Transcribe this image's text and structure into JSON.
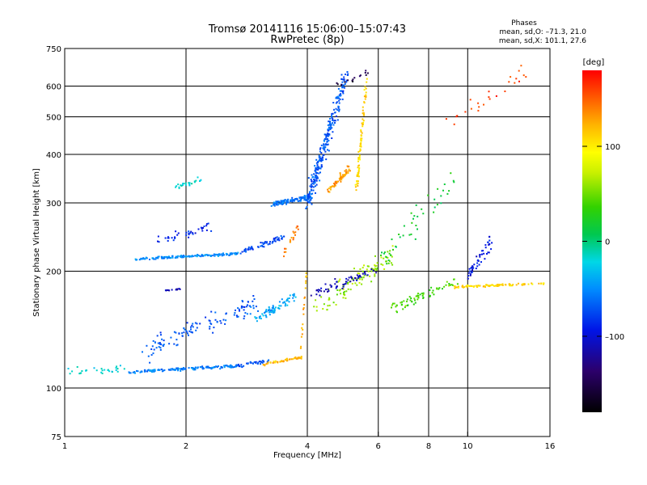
{
  "chart_data": {
    "type": "scatter",
    "title": "Tromsø 20141116 15:06:00–15:07:43",
    "subtitle": "RwPretec (8p)",
    "xlabel": "Frequency [MHz]",
    "ylabel": "Stationary phase Virtual Height [km]",
    "x_scale": "log",
    "y_scale": "log",
    "xlim": [
      1,
      16
    ],
    "ylim": [
      75,
      750
    ],
    "x_ticks": [
      "1",
      "2",
      "4",
      "6",
      "8",
      "10",
      "16"
    ],
    "x_tick_values": [
      1,
      2,
      4,
      6,
      8,
      10,
      16
    ],
    "y_ticks": [
      "75",
      "100",
      "200",
      "300",
      "400",
      "500",
      "600",
      "750"
    ],
    "y_tick_values": [
      75,
      100,
      200,
      300,
      400,
      500,
      600,
      750
    ],
    "grid": true,
    "colorbar": {
      "label": "[deg]",
      "range": [
        -180,
        180
      ],
      "ticks": [
        "100",
        "0",
        "–100"
      ],
      "tick_values": [
        100,
        0,
        -100
      ]
    },
    "stats": {
      "title": "Phases",
      "line_o": "mean, sd,O: –71.3, 21.0",
      "line_x": "mean, sd,X: 101.1, 27.6"
    },
    "traces": [
      {
        "name": "",
        "f_start": 1.0,
        "f_end": 1.45,
        "h_start": 110,
        "h_end": 112,
        "phase": -20,
        "spread_f": 0.02,
        "spread_h": 0.04,
        "n": 30
      },
      {
        "name": "",
        "f_start": 1.45,
        "f_end": 2.7,
        "h_start": 110,
        "h_end": 114,
        "phase": -55,
        "spread_f": 0.01,
        "spread_h": 0.012,
        "n": 150
      },
      {
        "name": "",
        "f_start": 2.7,
        "f_end": 3.2,
        "h_start": 114,
        "h_end": 118,
        "phase": -75,
        "spread_f": 0.01,
        "spread_h": 0.015,
        "n": 35
      },
      {
        "name": "",
        "f_start": 3.1,
        "f_end": 3.9,
        "h_start": 115,
        "h_end": 120,
        "phase": 120,
        "spread_f": 0.008,
        "spread_h": 0.015,
        "n": 50
      },
      {
        "name": "",
        "f_start": 3.85,
        "f_end": 3.98,
        "h_start": 125,
        "h_end": 200,
        "phase": 125,
        "spread_f": 0.004,
        "spread_h": 0.02,
        "n": 20
      },
      {
        "name": "",
        "f_start": 1.5,
        "f_end": 2.7,
        "h_start": 215,
        "h_end": 222,
        "phase": -50,
        "spread_f": 0.01,
        "spread_h": 0.01,
        "n": 150
      },
      {
        "name": "",
        "f_start": 2.7,
        "f_end": 3.5,
        "h_start": 222,
        "h_end": 245,
        "phase": -75,
        "spread_f": 0.01,
        "spread_h": 0.02,
        "n": 60
      },
      {
        "name": "",
        "f_start": 3.3,
        "f_end": 4.1,
        "h_start": 298,
        "h_end": 312,
        "phase": -60,
        "spread_f": 0.02,
        "spread_h": 0.02,
        "n": 120
      },
      {
        "name": "",
        "f_start": 4.0,
        "f_end": 5.0,
        "h_start": 300,
        "h_end": 640,
        "phase": -70,
        "spread_f": 0.03,
        "spread_h": 0.08,
        "n": 260
      },
      {
        "name": "",
        "f_start": 4.5,
        "f_end": 5.1,
        "h_start": 320,
        "h_end": 370,
        "phase": 130,
        "spread_f": 0.015,
        "spread_h": 0.03,
        "n": 60
      },
      {
        "name": "",
        "f_start": 5.3,
        "f_end": 5.6,
        "h_start": 330,
        "h_end": 600,
        "phase": 110,
        "spread_f": 0.01,
        "spread_h": 0.07,
        "n": 90
      },
      {
        "name": "",
        "f_start": 1.7,
        "f_end": 2.3,
        "h_start": 240,
        "h_end": 260,
        "phase": -90,
        "spread_f": 0.02,
        "spread_h": 0.04,
        "n": 40
      },
      {
        "name": "",
        "f_start": 1.9,
        "f_end": 2.2,
        "h_start": 330,
        "h_end": 345,
        "phase": -20,
        "spread_f": 0.03,
        "spread_h": 0.02,
        "n": 25
      },
      {
        "name": "",
        "f_start": 3.4,
        "f_end": 3.8,
        "h_start": 212,
        "h_end": 260,
        "phase": 140,
        "spread_f": 0.015,
        "spread_h": 0.03,
        "n": 20
      },
      {
        "name": "",
        "f_start": 3.0,
        "f_end": 3.8,
        "h_start": 150,
        "h_end": 175,
        "phase": -40,
        "spread_f": 0.03,
        "spread_h": 0.04,
        "n": 70
      },
      {
        "name": "",
        "f_start": 1.6,
        "f_end": 3.0,
        "h_start": 125,
        "h_end": 165,
        "phase": -70,
        "spread_f": 0.04,
        "spread_h": 0.08,
        "n": 120
      },
      {
        "name": "",
        "f_start": 1.75,
        "f_end": 1.95,
        "h_start": 178,
        "h_end": 180,
        "phase": -110,
        "spread_f": 0.01,
        "spread_h": 0.005,
        "n": 15
      },
      {
        "name": "",
        "f_start": 4.2,
        "f_end": 6.5,
        "h_start": 160,
        "h_end": 220,
        "phase": 60,
        "spread_f": 0.05,
        "spread_h": 0.08,
        "n": 110
      },
      {
        "name": "",
        "f_start": 4.1,
        "f_end": 5.8,
        "h_start": 175,
        "h_end": 200,
        "phase": -110,
        "spread_f": 0.04,
        "spread_h": 0.05,
        "n": 60
      },
      {
        "name": "",
        "f_start": 6.5,
        "f_end": 9.5,
        "h_start": 160,
        "h_end": 190,
        "phase": 40,
        "spread_f": 0.04,
        "spread_h": 0.05,
        "n": 70
      },
      {
        "name": "",
        "f_start": 9.2,
        "f_end": 15.5,
        "h_start": 182,
        "h_end": 186,
        "phase": 110,
        "spread_f": 0.01,
        "spread_h": 0.01,
        "n": 90
      },
      {
        "name": "",
        "f_start": 10.0,
        "f_end": 11.5,
        "h_start": 195,
        "h_end": 240,
        "phase": -95,
        "spread_f": 0.02,
        "spread_h": 0.06,
        "n": 50
      },
      {
        "name": "",
        "f_start": 6.2,
        "f_end": 9.5,
        "h_start": 220,
        "h_end": 360,
        "phase": 20,
        "spread_f": 0.05,
        "spread_h": 0.12,
        "n": 45
      },
      {
        "name": "",
        "f_start": 9.0,
        "f_end": 14.0,
        "h_start": 480,
        "h_end": 650,
        "phase": 160,
        "spread_f": 0.04,
        "spread_h": 0.08,
        "n": 25
      },
      {
        "name": "",
        "f_start": 4.6,
        "f_end": 5.7,
        "h_start": 600,
        "h_end": 650,
        "phase": -150,
        "spread_f": 0.02,
        "spread_h": 0.03,
        "n": 15
      }
    ]
  },
  "colors": {
    "grid": "#000000",
    "background": "#ffffff"
  }
}
